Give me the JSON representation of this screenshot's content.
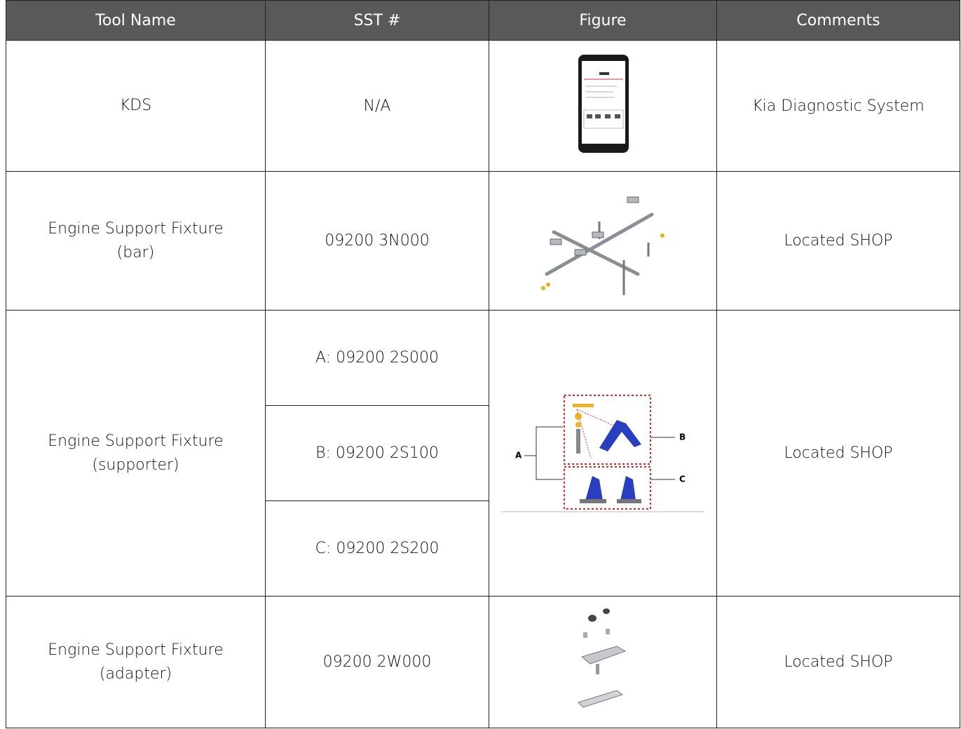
{
  "table": {
    "header": [
      "Tool Name",
      "SST #",
      "Figure",
      "Comments"
    ],
    "rows": [
      {
        "tool_name": [
          "KDS"
        ],
        "sst": [
          "N/A"
        ],
        "comments": "Kia Diagnostic System"
      },
      {
        "tool_name": [
          "Engine Support Fixture",
          "(bar)"
        ],
        "sst": [
          "09200 3N000"
        ],
        "comments": "Located SHOP"
      },
      {
        "tool_name": [
          "Engine Support Fixture",
          "(supporter)"
        ],
        "sst": [
          "A: 09200 2S000",
          "B: 09200 2S100",
          "C: 09200 2S200"
        ],
        "figure_labels": [
          "A",
          "B",
          "C"
        ],
        "comments": "Located SHOP"
      },
      {
        "tool_name": [
          "Engine Support Fixture",
          "(adapter)"
        ],
        "sst": [
          "09200 2W000"
        ],
        "comments": "Located SHOP"
      }
    ]
  }
}
